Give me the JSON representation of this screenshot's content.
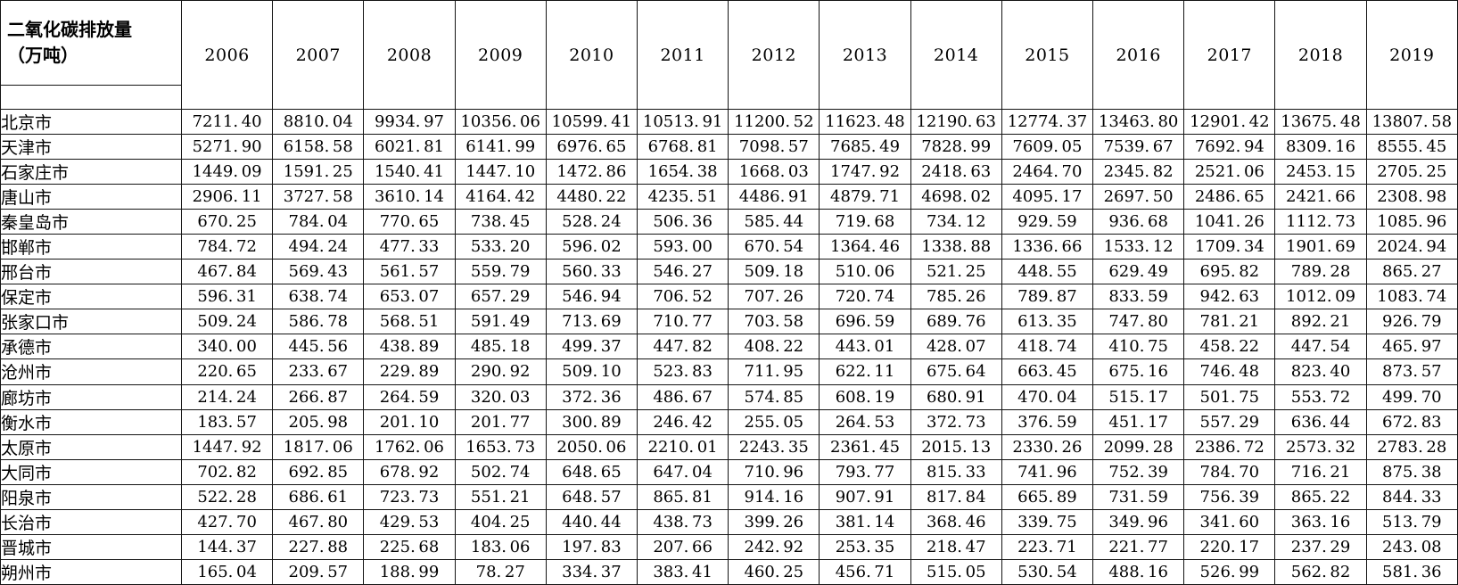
{
  "table": {
    "header_label": "二氧化碳排放量\n（万吨）",
    "years": [
      "2006",
      "2007",
      "2008",
      "2009",
      "2010",
      "2011",
      "2012",
      "2013",
      "2014",
      "2015",
      "2016",
      "2017",
      "2018",
      "2019"
    ],
    "rows": [
      {
        "city": "北京市",
        "values": [
          "7211.40",
          "8810.04",
          "9934.97",
          "10356.06",
          "10599.41",
          "10513.91",
          "11200.52",
          "11623.48",
          "12190.63",
          "12774.37",
          "13463.80",
          "12901.42",
          "13675.48",
          "13807.58"
        ]
      },
      {
        "city": "天津市",
        "values": [
          "5271.90",
          "6158.58",
          "6021.81",
          "6141.99",
          "6976.65",
          "6768.81",
          "7098.57",
          "7685.49",
          "7828.99",
          "7609.05",
          "7539.67",
          "7692.94",
          "8309.16",
          "8555.45"
        ]
      },
      {
        "city": "石家庄市",
        "values": [
          "1449.09",
          "1591.25",
          "1540.41",
          "1447.10",
          "1472.86",
          "1654.38",
          "1668.03",
          "1747.92",
          "2418.63",
          "2464.70",
          "2345.82",
          "2521.06",
          "2453.15",
          "2705.25"
        ]
      },
      {
        "city": "唐山市",
        "values": [
          "2906.11",
          "3727.58",
          "3610.14",
          "4164.42",
          "4480.22",
          "4235.51",
          "4486.91",
          "4879.71",
          "4698.02",
          "4095.17",
          "2697.50",
          "2486.65",
          "2421.66",
          "2308.98"
        ]
      },
      {
        "city": "秦皇岛市",
        "values": [
          "670.25",
          "784.04",
          "770.65",
          "738.45",
          "528.24",
          "506.36",
          "585.44",
          "719.68",
          "734.12",
          "929.59",
          "936.68",
          "1041.26",
          "1112.73",
          "1085.96"
        ]
      },
      {
        "city": "邯郸市",
        "values": [
          "784.72",
          "494.24",
          "477.33",
          "533.20",
          "596.02",
          "593.00",
          "670.54",
          "1364.46",
          "1338.88",
          "1336.66",
          "1533.12",
          "1709.34",
          "1901.69",
          "2024.94"
        ]
      },
      {
        "city": "邢台市",
        "values": [
          "467.84",
          "569.43",
          "561.57",
          "559.79",
          "560.33",
          "546.27",
          "509.18",
          "510.06",
          "521.25",
          "448.55",
          "629.49",
          "695.82",
          "789.28",
          "865.27"
        ]
      },
      {
        "city": "保定市",
        "values": [
          "596.31",
          "638.74",
          "653.07",
          "657.29",
          "546.94",
          "706.52",
          "707.26",
          "720.74",
          "785.26",
          "789.87",
          "833.59",
          "942.63",
          "1012.09",
          "1083.74"
        ]
      },
      {
        "city": "张家口市",
        "values": [
          "509.24",
          "586.78",
          "568.51",
          "591.49",
          "713.69",
          "710.77",
          "703.58",
          "696.59",
          "689.76",
          "613.35",
          "747.80",
          "781.21",
          "892.21",
          "926.79"
        ]
      },
      {
        "city": "承德市",
        "values": [
          "340.00",
          "445.56",
          "438.89",
          "485.18",
          "499.37",
          "447.82",
          "408.22",
          "443.01",
          "428.07",
          "418.74",
          "410.75",
          "458.22",
          "447.54",
          "465.97"
        ]
      },
      {
        "city": "沧州市",
        "values": [
          "220.65",
          "233.67",
          "229.89",
          "290.92",
          "509.10",
          "523.83",
          "711.95",
          "622.11",
          "675.64",
          "663.45",
          "675.16",
          "746.48",
          "823.40",
          "873.57"
        ]
      },
      {
        "city": "廊坊市",
        "values": [
          "214.24",
          "266.87",
          "264.59",
          "320.03",
          "372.36",
          "486.67",
          "574.85",
          "608.19",
          "680.91",
          "470.04",
          "515.17",
          "501.75",
          "553.72",
          "499.70"
        ]
      },
      {
        "city": "衡水市",
        "values": [
          "183.57",
          "205.98",
          "201.10",
          "201.77",
          "300.89",
          "246.42",
          "255.05",
          "264.53",
          "372.73",
          "376.59",
          "451.17",
          "557.29",
          "636.44",
          "672.83"
        ]
      },
      {
        "city": "太原市",
        "values": [
          "1447.92",
          "1817.06",
          "1762.06",
          "1653.73",
          "2050.06",
          "2210.01",
          "2243.35",
          "2361.45",
          "2015.13",
          "2330.26",
          "2099.28",
          "2386.72",
          "2573.32",
          "2783.28"
        ]
      },
      {
        "city": "大同市",
        "values": [
          "702.82",
          "692.85",
          "678.92",
          "502.74",
          "648.65",
          "647.04",
          "710.96",
          "793.77",
          "815.33",
          "741.96",
          "752.39",
          "784.70",
          "716.21",
          "875.38"
        ]
      },
      {
        "city": "阳泉市",
        "values": [
          "522.28",
          "686.61",
          "723.73",
          "551.21",
          "648.57",
          "865.81",
          "914.16",
          "907.91",
          "817.84",
          "665.89",
          "731.59",
          "756.39",
          "865.22",
          "844.33"
        ]
      },
      {
        "city": "长治市",
        "values": [
          "427.70",
          "467.80",
          "429.53",
          "404.25",
          "440.44",
          "438.73",
          "399.26",
          "381.14",
          "368.46",
          "339.75",
          "349.96",
          "341.60",
          "363.16",
          "513.79"
        ]
      },
      {
        "city": "晋城市",
        "values": [
          "144.37",
          "227.88",
          "225.68",
          "183.06",
          "197.83",
          "207.66",
          "242.92",
          "253.35",
          "218.47",
          "223.71",
          "221.77",
          "220.17",
          "237.29",
          "243.08"
        ]
      },
      {
        "city": "朔州市",
        "values": [
          "165.04",
          "209.57",
          "188.99",
          "78.27",
          "334.37",
          "383.41",
          "460.25",
          "456.71",
          "515.05",
          "530.54",
          "488.16",
          "526.99",
          "562.82",
          "581.36"
        ]
      }
    ]
  }
}
